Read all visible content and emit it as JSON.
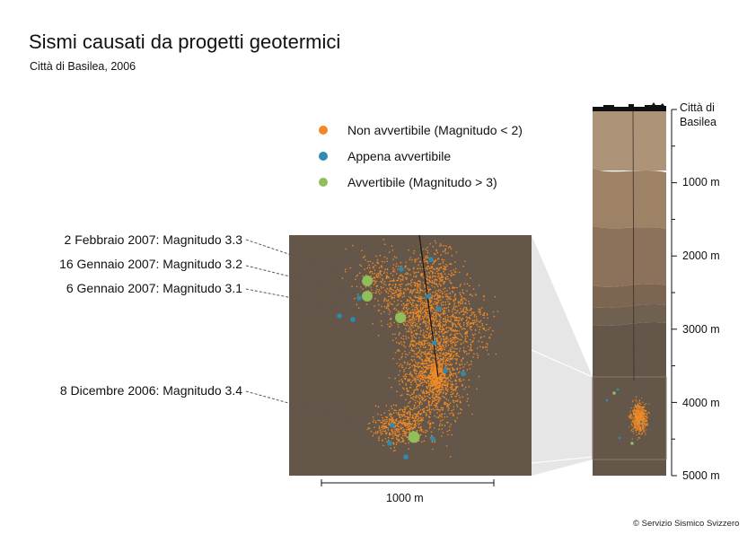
{
  "title": "Sismi causati da progetti geotermici",
  "subtitle": "Città di Basilea, 2006",
  "legend": [
    {
      "label": "Non avvertibile (Magnitudo < 2)",
      "color": "#f08a24"
    },
    {
      "label": "Appena avvertibile",
      "color": "#2b8cb3"
    },
    {
      "label": "Avvertibile (Magnitudo > 3)",
      "color": "#8fbe5a"
    }
  ],
  "annotations": [
    {
      "label": "2 Febbraio 2007: Magnitudo 3.3"
    },
    {
      "label": "16 Gennaio 2007: Magnitudo 3.2"
    },
    {
      "label": "6 Gennaio 2007: Magnitudo 3.1"
    },
    {
      "label": "8 Dicembre 2006: Magnitudo 3.4"
    }
  ],
  "depth_axis": {
    "city_label": "Città di Basilea",
    "ticks": [
      "1000 m",
      "2000 m",
      "3000 m",
      "4000 m",
      "5000 m"
    ]
  },
  "scale_bar": {
    "label": "1000 m"
  },
  "credit": "© Servizio Sismico Svizzero",
  "colors": {
    "background_rock": "#65564a",
    "orange": "#f08a24",
    "blue": "#2b8cb3",
    "green": "#8fbe5a"
  }
}
